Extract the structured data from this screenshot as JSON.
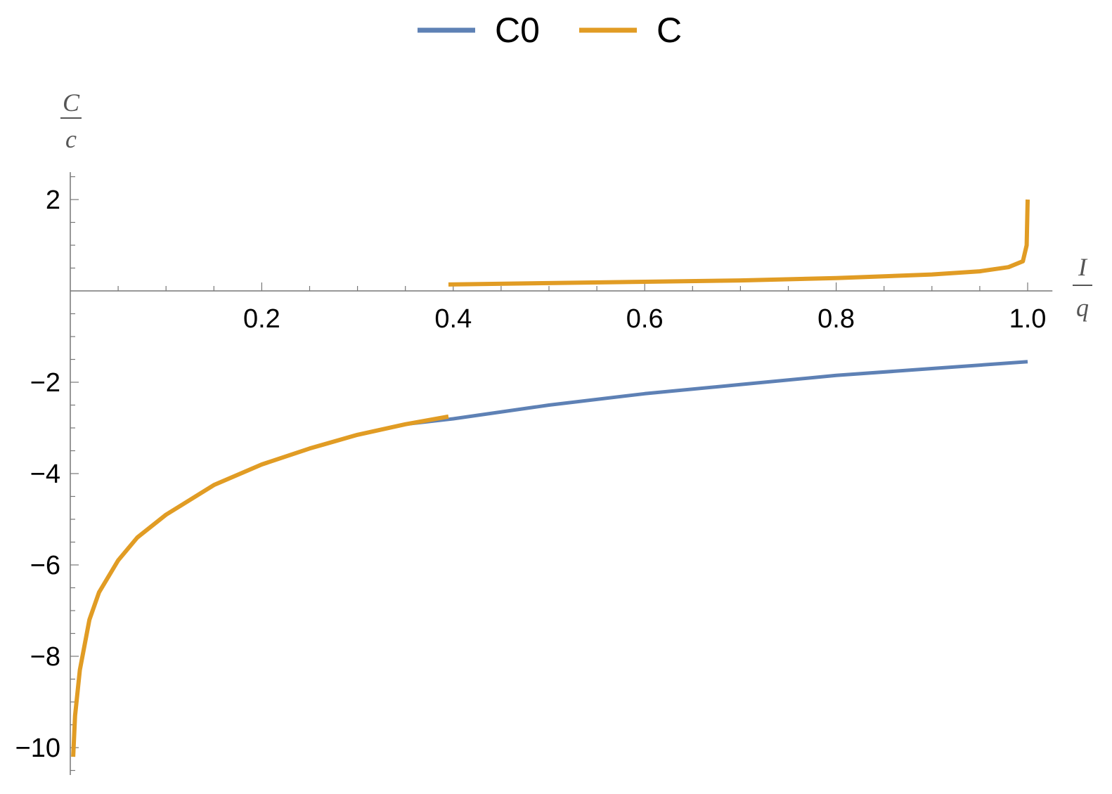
{
  "chart_data": {
    "type": "line",
    "xlabel": {
      "numerator": "I",
      "denominator": "q"
    },
    "ylabel": {
      "numerator": "C",
      "denominator": "c"
    },
    "xlim": [
      0,
      1.02
    ],
    "ylim": [
      -10.6,
      2.6
    ],
    "x_ticks": [
      0.2,
      0.4,
      0.6,
      0.8,
      1.0
    ],
    "x_tick_labels": [
      "0.2",
      "0.4",
      "0.6",
      "0.8",
      "1.0"
    ],
    "y_ticks": [
      -10,
      -8,
      -6,
      -4,
      -2,
      2
    ],
    "y_tick_labels": [
      "−10",
      "−8",
      "−6",
      "−4",
      "−2",
      "2"
    ],
    "legend": {
      "position": "top-center"
    },
    "grid": false,
    "series": [
      {
        "name": "C0",
        "color": "#5E81B5",
        "x": [
          0.003,
          0.005,
          0.01,
          0.02,
          0.03,
          0.05,
          0.07,
          0.1,
          0.15,
          0.2,
          0.25,
          0.3,
          0.35,
          0.4,
          0.5,
          0.6,
          0.7,
          0.8,
          0.9,
          1.0
        ],
        "y": [
          -10.2,
          -9.3,
          -8.3,
          -7.2,
          -6.6,
          -5.9,
          -5.4,
          -4.9,
          -4.25,
          -3.8,
          -3.45,
          -3.15,
          -2.92,
          -2.8,
          -2.5,
          -2.25,
          -2.05,
          -1.85,
          -1.7,
          -1.55
        ]
      },
      {
        "name": "C",
        "color": "#E19C24",
        "x": [
          0.003,
          0.005,
          0.01,
          0.02,
          0.03,
          0.05,
          0.07,
          0.1,
          0.15,
          0.2,
          0.25,
          0.3,
          0.35,
          0.395,
          null,
          0.395,
          0.5,
          0.6,
          0.7,
          0.8,
          0.9,
          0.95,
          0.98,
          0.995,
          0.999,
          1.0
        ],
        "y": [
          -10.2,
          -9.3,
          -8.3,
          -7.2,
          -6.6,
          -5.9,
          -5.4,
          -4.9,
          -4.25,
          -3.8,
          -3.45,
          -3.15,
          -2.92,
          -2.75,
          null,
          0.14,
          0.17,
          0.2,
          0.23,
          0.28,
          0.36,
          0.43,
          0.52,
          0.65,
          1.0,
          2.0
        ]
      }
    ]
  }
}
